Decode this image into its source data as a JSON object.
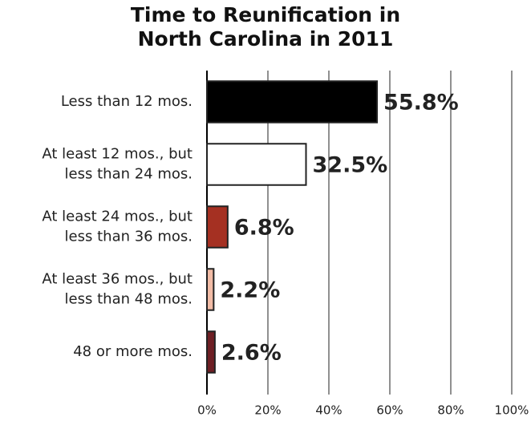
{
  "chart_data": {
    "type": "bar",
    "orientation": "horizontal",
    "title": [
      "Time to Reunification in",
      "North Carolina in 2011"
    ],
    "categories": [
      [
        "Less than 12 mos."
      ],
      [
        "At least 12 mos., but",
        "less than 24 mos."
      ],
      [
        "At least 24 mos., but",
        "less than 36 mos."
      ],
      [
        "At least 36 mos., but",
        "less than 48 mos."
      ],
      [
        "48  or more mos."
      ]
    ],
    "values": [
      55.8,
      32.5,
      6.8,
      2.2,
      2.6
    ],
    "value_labels": [
      "55.8%",
      "32.5%",
      "6.8%",
      "2.2%",
      "2.6%"
    ],
    "colors": [
      "#000000",
      "#ffffff",
      "#a53022",
      "#f2bca6",
      "#6e1f24"
    ],
    "xlim": [
      0,
      100
    ],
    "xticks": [
      {
        "value": 0,
        "label": "0%"
      },
      {
        "value": 20,
        "label": "20%"
      },
      {
        "value": 40,
        "label": "40%"
      },
      {
        "value": 60,
        "label": "60%"
      },
      {
        "value": 80,
        "label": "80%"
      },
      {
        "value": 100,
        "label": "100%"
      }
    ],
    "grid": true
  }
}
